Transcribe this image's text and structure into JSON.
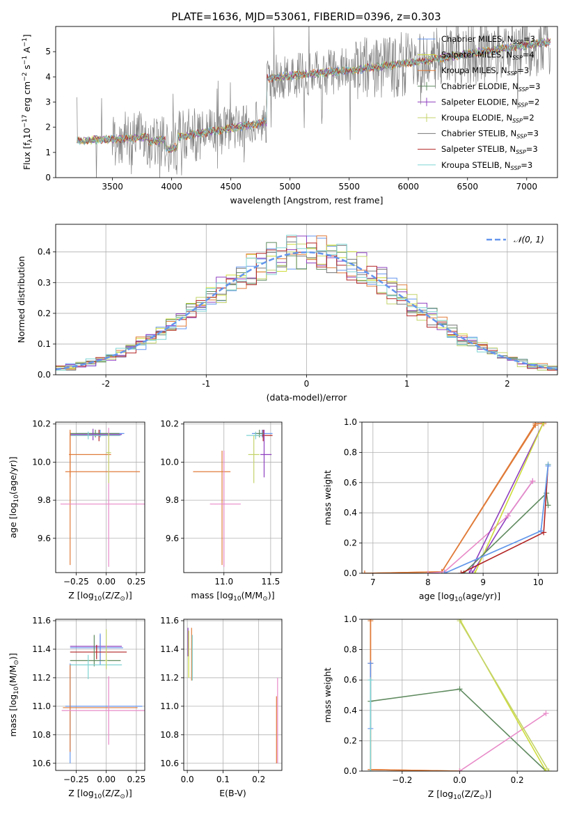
{
  "figure": {
    "title": "PLATE=1636, MJD=53061, FIBERID=0396, z=0.303"
  },
  "colors": {
    "models": [
      "#6495ed",
      "#cddc39",
      "#e07b39",
      "#5f8a5f",
      "#8e3fbf",
      "#c4d36a",
      "#777777",
      "#b22222",
      "#7fd3d3"
    ],
    "extra": [
      "#e88ac8",
      "#e07b39"
    ],
    "normal_fit": "#6495ed",
    "observed": "#808080"
  },
  "chart_data": [
    {
      "id": "spectrum",
      "type": "line",
      "xlabel": "wavelength [Angstrom, rest frame]",
      "ylabel": "Flux [f",
      "ylabel_sub": "λ",
      "ylabel_rest": "10",
      "ylabel_exp": "−17",
      "ylabel_units": " erg cm",
      "xlim": [
        3020,
        7260
      ],
      "ylim": [
        0,
        6.0
      ],
      "xticks": [
        3500,
        4000,
        4500,
        5000,
        5500,
        6000,
        6500,
        7000
      ],
      "yticks": [
        0,
        1,
        2,
        3,
        4,
        5
      ],
      "x_start": 3200,
      "x_end": 7200,
      "legend": [
        {
          "model": "Chabrier MILES",
          "n": "3"
        },
        {
          "model": "Salpeter MILES",
          "n": "4"
        },
        {
          "model": "Kroupa MILES",
          "n": "3"
        },
        {
          "model": "Chabrier ELODIE",
          "n": "3"
        },
        {
          "model": "Salpeter ELODIE",
          "n": "2"
        },
        {
          "model": "Kroupa ELODIE",
          "n": "2"
        },
        {
          "model": "Chabrier STELIB",
          "n": "3"
        },
        {
          "model": "Salpeter STELIB",
          "n": "3"
        },
        {
          "model": "Kroupa STELIB",
          "n": "3"
        }
      ],
      "legend_n_label": "N",
      "legend_n_sub": "SSP"
    },
    {
      "id": "residuals",
      "type": "histogram",
      "xlabel": "(data-model)/error",
      "ylabel": "Normed distribution",
      "xlim": [
        -2.5,
        2.5
      ],
      "ylim": [
        0,
        0.49
      ],
      "xticks": [
        -2,
        -1,
        0,
        1,
        2
      ],
      "yticks": [
        0.0,
        0.1,
        0.2,
        0.3,
        0.4
      ],
      "bin_width": 0.1,
      "legend": "𝒩(0, 1)"
    },
    {
      "id": "age_vs_z",
      "type": "errorbar",
      "xlabel": "Z [log",
      "xlabel_sub": "10",
      "xlabel_rest": "(Z/Z",
      "xlabel_sun": "⊙",
      "xlabel_end": ")]",
      "ylabel": "age  [log",
      "ylabel_sub": "10",
      "ylabel_rest": "(age/yr)]",
      "xlim": [
        -0.42,
        0.32
      ],
      "ylim": [
        9.42,
        10.21
      ],
      "xticks": [
        -0.25,
        0.0,
        0.25
      ],
      "xticklabels": [
        "−0.25",
        "0.00",
        "0.25"
      ],
      "yticks": [
        9.6,
        9.8,
        10.0,
        10.2
      ],
      "points": [
        {
          "x": -0.05,
          "xerr": [
            0.2,
            0.2
          ],
          "y": 10.15,
          "yerr": [
            0.02,
            0.02
          ],
          "c": 0
        },
        {
          "x": -0.06,
          "xerr": [
            0.24,
            0.17
          ],
          "y": 10.14,
          "yerr": [
            0.03,
            0.03
          ],
          "c": 7
        },
        {
          "x": -0.09,
          "xerr": [
            0.21,
            0.2
          ],
          "y": 10.15,
          "yerr": [
            0.02,
            0.02
          ],
          "c": 3
        },
        {
          "x": -0.11,
          "xerr": [
            0.19,
            0.24
          ],
          "y": 10.145,
          "yerr": [
            0.03,
            0.03
          ],
          "c": 4
        },
        {
          "x": -0.15,
          "xerr": [
            0.15,
            0.27
          ],
          "y": 10.14,
          "yerr": [
            0.02,
            0.02
          ],
          "c": 8
        },
        {
          "x": -0.3,
          "xerr": [
            0.01,
            0.34
          ],
          "y": 10.04,
          "yerr": [
            0.12,
            0.13
          ],
          "c": 2
        },
        {
          "x": -0.3,
          "xerr": [
            0.04,
            0.58
          ],
          "y": 9.95,
          "yerr": [
            0.49,
            0.21
          ],
          "c": 10
        },
        {
          "x": 0.02,
          "xerr": [
            0.4,
            0.31
          ],
          "y": 9.78,
          "yerr": [
            0.33,
            0.4
          ],
          "c": 9
        },
        {
          "x": 0.02,
          "xerr": [
            0.02,
            0.02
          ],
          "y": 10.05,
          "yerr": [
            0.16,
            0.1
          ],
          "c": 5
        }
      ]
    },
    {
      "id": "age_vs_mass",
      "type": "errorbar",
      "xlabel": "mass [log",
      "xlabel_sub": "10",
      "xlabel_rest": "(M/M",
      "xlabel_sun": "⊙",
      "xlabel_end": ")]",
      "xlim": [
        10.57,
        11.62
      ],
      "ylim": [
        9.42,
        10.21
      ],
      "xticks": [
        11.0,
        11.5
      ],
      "xticklabels": [
        "11.0",
        "11.5"
      ],
      "yticks": [
        9.6,
        9.8,
        10.0,
        10.2
      ],
      "points": [
        {
          "x": 11.41,
          "xerr": [
            0.11,
            0.11
          ],
          "y": 10.15,
          "yerr": [
            0.02,
            0.02
          ],
          "c": 0
        },
        {
          "x": 11.42,
          "xerr": [
            0.09,
            0.1
          ],
          "y": 10.14,
          "yerr": [
            0.03,
            0.03
          ],
          "c": 7
        },
        {
          "x": 11.38,
          "xerr": [
            0.05,
            0.05
          ],
          "y": 10.15,
          "yerr": [
            0.02,
            0.02
          ],
          "c": 3
        },
        {
          "x": 11.43,
          "xerr": [
            0.04,
            0.08
          ],
          "y": 10.04,
          "yerr": [
            0.12,
            0.13
          ],
          "c": 4
        },
        {
          "x": 11.34,
          "xerr": [
            0.1,
            0.07
          ],
          "y": 10.14,
          "yerr": [
            0.02,
            0.02
          ],
          "c": 8
        },
        {
          "x": 11.32,
          "xerr": [
            0.06,
            0.06
          ],
          "y": 10.04,
          "yerr": [
            0.15,
            0.1
          ],
          "c": 5
        },
        {
          "x": 10.98,
          "xerr": [
            0.31,
            0.09
          ],
          "y": 9.95,
          "yerr": [
            0.49,
            0.11
          ],
          "c": 10
        },
        {
          "x": 11.0,
          "xerr": [
            0.15,
            0.18
          ],
          "y": 9.78,
          "yerr": [
            0.33,
            0.28
          ],
          "c": 9
        }
      ]
    },
    {
      "id": "weight_vs_age",
      "type": "line",
      "xlabel": "age  [log",
      "xlabel_sub": "10",
      "xlabel_rest": "(age/yr)]",
      "ylabel": "mass weight",
      "xlim": [
        6.8,
        10.35
      ],
      "ylim": [
        0,
        1.0
      ],
      "xticks": [
        7,
        8,
        9,
        10
      ],
      "yticks": [
        0.0,
        0.2,
        0.4,
        0.6,
        0.8,
        1.0
      ],
      "series": [
        {
          "c": 2,
          "x": [
            6.85,
            8.25,
            9.95,
            10.1
          ],
          "y": [
            0.0,
            0.01,
            0.99,
            0.99
          ]
        },
        {
          "c": 10,
          "x": [
            6.85,
            8.25,
            9.95
          ],
          "y": [
            0.0,
            0.01,
            0.98
          ]
        },
        {
          "c": 4,
          "x": [
            8.8,
            9.45,
            9.9
          ],
          "y": [
            0.0,
            0.38,
            0.61
          ]
        },
        {
          "c": 9,
          "x": [
            8.0,
            8.3,
            9.45,
            9.9
          ],
          "y": [
            0.0,
            0.01,
            0.38,
            0.61
          ]
        },
        {
          "c": 4,
          "x": [
            8.75,
            10.1
          ],
          "y": [
            0.0,
            1.0
          ]
        },
        {
          "c": 1,
          "x": [
            8.85,
            10.1
          ],
          "y": [
            0.0,
            1.0
          ]
        },
        {
          "c": 3,
          "x": [
            8.65,
            10.15,
            10.18
          ],
          "y": [
            0.0,
            0.53,
            0.45
          ]
        },
        {
          "c": 7,
          "x": [
            8.6,
            10.1,
            10.18
          ],
          "y": [
            0.0,
            0.27,
            0.72
          ]
        },
        {
          "c": 8,
          "x": [
            8.3,
            10.05,
            10.18
          ],
          "y": [
            0.0,
            0.28,
            0.72
          ]
        },
        {
          "c": 0,
          "x": [
            8.3,
            10.05,
            10.18
          ],
          "y": [
            0.0,
            0.28,
            0.71
          ]
        }
      ]
    },
    {
      "id": "mass_vs_z",
      "type": "errorbar",
      "xlabel": "Z [log",
      "xlabel_sub": "10",
      "xlabel_rest": "(Z/Z",
      "xlabel_sun": "⊙",
      "xlabel_end": ")]",
      "ylabel": "mass [log",
      "ylabel_sub": "10",
      "ylabel_rest": "(M/M",
      "ylabel_sun": "⊙",
      "ylabel_end": ")]",
      "xlim": [
        -0.42,
        0.32
      ],
      "ylim": [
        10.55,
        11.61
      ],
      "xticks": [
        -0.25,
        0.0,
        0.25
      ],
      "xticklabels": [
        "−0.25",
        "0.00",
        "0.25"
      ],
      "yticks": [
        10.6,
        10.8,
        11.0,
        11.2,
        11.4,
        11.6
      ],
      "points": [
        {
          "x": -0.05,
          "xerr": [
            0.25,
            0.18
          ],
          "y": 11.42,
          "yerr": [
            0.1,
            0.08
          ],
          "c": 4
        },
        {
          "x": -0.05,
          "xerr": [
            0.25,
            0.19
          ],
          "y": 11.41,
          "yerr": [
            0.12,
            0.1
          ],
          "c": 0
        },
        {
          "x": -0.08,
          "xerr": [
            0.22,
            0.25
          ],
          "y": 11.38,
          "yerr": [
            0.05,
            0.05
          ],
          "c": 7
        },
        {
          "x": -0.1,
          "xerr": [
            0.2,
            0.22
          ],
          "y": 11.32,
          "yerr": [
            0.04,
            0.18
          ],
          "c": 3
        },
        {
          "x": -0.15,
          "xerr": [
            0.15,
            0.28
          ],
          "y": 11.29,
          "yerr": [
            0.1,
            0.07
          ],
          "c": 8
        },
        {
          "x": -0.3,
          "xerr": [
            0.04,
            0.6
          ],
          "y": 11.0,
          "yerr": [
            0.4,
            0.3
          ],
          "c": 0
        },
        {
          "x": -0.3,
          "xerr": [
            0.06,
            0.56
          ],
          "y": 10.99,
          "yerr": [
            0.31,
            0.3
          ],
          "c": 10
        },
        {
          "x": 0.02,
          "xerr": [
            0.39,
            0.34
          ],
          "y": 10.97,
          "yerr": [
            0.24,
            0.24
          ],
          "c": 9
        },
        {
          "x": 0.0,
          "xerr": [
            0.01,
            0.01
          ],
          "y": 11.32,
          "yerr": [
            0.06,
            0.22
          ],
          "c": 5
        }
      ]
    },
    {
      "id": "mass_vs_ebv",
      "type": "errorbar",
      "xlabel": "E(B-V)",
      "xlim": [
        -0.01,
        0.265
      ],
      "ylim": [
        10.55,
        11.61
      ],
      "xticks": [
        0.0,
        0.1,
        0.2
      ],
      "xticklabels": [
        "0.0",
        "0.1",
        "0.2"
      ],
      "yticks": [
        10.6,
        10.8,
        11.0,
        11.2,
        11.4,
        11.6
      ],
      "points": [
        {
          "x": 0.002,
          "xerr": [
            0,
            0
          ],
          "y": 11.45,
          "yerr": [
            0.1,
            0.1
          ],
          "c": 4
        },
        {
          "x": 0.004,
          "xerr": [
            0,
            0
          ],
          "y": 11.38,
          "yerr": [
            0.18,
            0.15
          ],
          "c": 1
        },
        {
          "x": 0.012,
          "xerr": [
            0,
            0
          ],
          "y": 11.38,
          "yerr": [
            0.2,
            0.17
          ],
          "c": 2
        },
        {
          "x": 0.014,
          "xerr": [
            0,
            0
          ],
          "y": 11.35,
          "yerr": [
            0.17,
            0.15
          ],
          "c": 8
        },
        {
          "x": 0.25,
          "xerr": [
            0,
            0
          ],
          "y": 10.85,
          "yerr": [
            0.25,
            0.22
          ],
          "c": 2
        },
        {
          "x": 0.253,
          "xerr": [
            0,
            0
          ],
          "y": 10.85,
          "yerr": [
            0.25,
            0.35
          ],
          "c": 9
        }
      ]
    },
    {
      "id": "weight_vs_z",
      "type": "line",
      "xlabel": "Z [log",
      "xlabel_sub": "10",
      "xlabel_rest": "(Z/Z",
      "xlabel_sun": "⊙",
      "xlabel_end": ")]",
      "ylabel": "mass weight",
      "xlim": [
        -0.34,
        0.34
      ],
      "ylim": [
        0,
        1.0
      ],
      "xticks": [
        -0.2,
        0.0,
        0.2
      ],
      "xticklabels": [
        "−0.2",
        "0.0",
        "0.2"
      ],
      "yticks": [
        0.0,
        0.2,
        0.4,
        0.6,
        0.8,
        1.0
      ],
      "series": [
        {
          "c": 2,
          "x": [
            -0.31,
            -0.31,
            -0.31,
            0.0
          ],
          "y": [
            1.0,
            0.71,
            0.01,
            0.0
          ]
        },
        {
          "c": 10,
          "x": [
            -0.31,
            -0.31,
            0.0
          ],
          "y": [
            0.99,
            0.01,
            0.0
          ]
        },
        {
          "c": 3,
          "x": [
            -0.31,
            0.0,
            0.3
          ],
          "y": [
            0.46,
            0.54,
            0.0
          ]
        },
        {
          "c": 9,
          "x": [
            0.0,
            0.3
          ],
          "y": [
            0.0,
            0.38
          ]
        },
        {
          "c": 1,
          "x": [
            0.0,
            0.3
          ],
          "y": [
            1.0,
            0.0
          ]
        },
        {
          "c": 5,
          "x": [
            0.0,
            0.31
          ],
          "y": [
            0.99,
            0.0
          ]
        },
        {
          "c": 0,
          "x": [
            -0.31,
            -0.31
          ],
          "y": [
            0.71,
            0.28
          ]
        },
        {
          "c": 8,
          "x": [
            -0.31,
            -0.31
          ],
          "y": [
            0.6,
            0.0
          ]
        }
      ]
    }
  ]
}
